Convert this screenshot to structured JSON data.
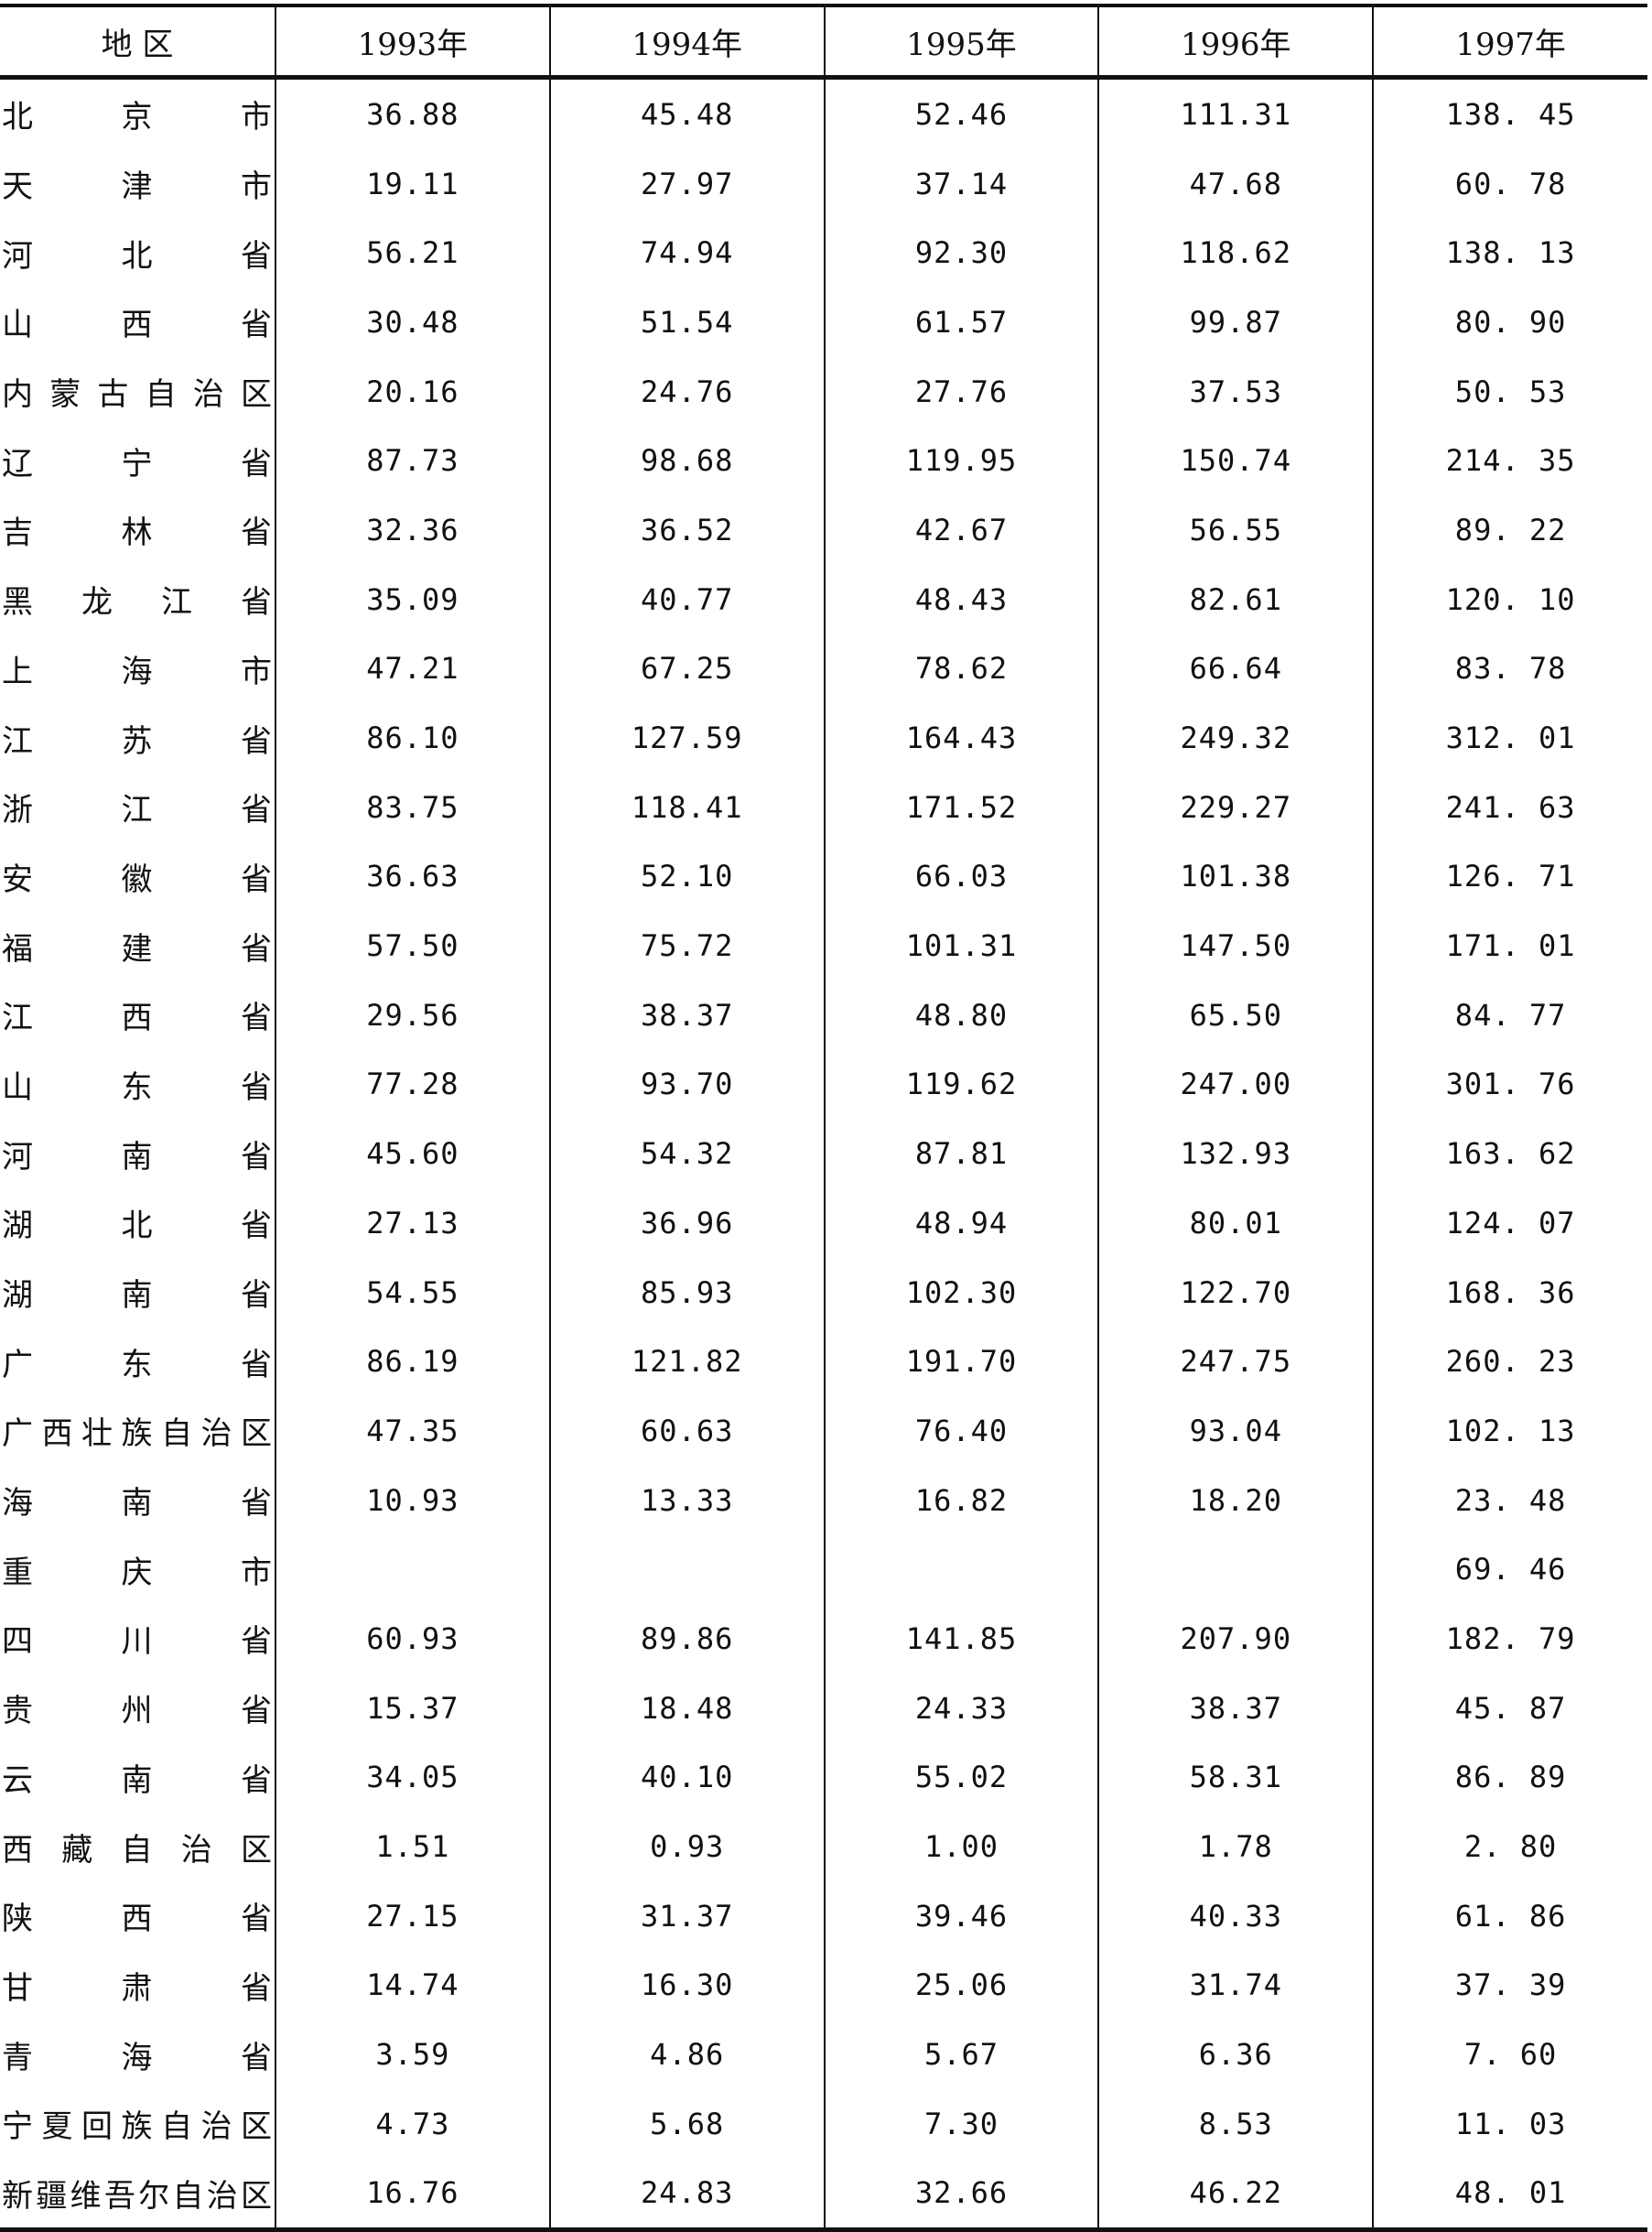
{
  "table": {
    "headers": [
      "地 区",
      "1993年",
      "1994年",
      "1995年",
      "1996年",
      "1997年"
    ],
    "rows": [
      [
        "北京市",
        "36.88",
        "45.48",
        "52.46",
        "111.31",
        "138. 45"
      ],
      [
        "天津市",
        "19.11",
        "27.97",
        "37.14",
        "47.68",
        "60. 78"
      ],
      [
        "河北省",
        "56.21",
        "74.94",
        "92.30",
        "118.62",
        "138. 13"
      ],
      [
        "山西省",
        "30.48",
        "51.54",
        "61.57",
        "99.87",
        "80. 90"
      ],
      [
        "内蒙古自治区",
        "20.16",
        "24.76",
        "27.76",
        "37.53",
        "50. 53"
      ],
      [
        "辽宁省",
        "87.73",
        "98.68",
        "119.95",
        "150.74",
        "214. 35"
      ],
      [
        "吉林省",
        "32.36",
        "36.52",
        "42.67",
        "56.55",
        "89. 22"
      ],
      [
        "黑龙江省",
        "35.09",
        "40.77",
        "48.43",
        "82.61",
        "120. 10"
      ],
      [
        "上海市",
        "47.21",
        "67.25",
        "78.62",
        "66.64",
        "83. 78"
      ],
      [
        "江苏省",
        "86.10",
        "127.59",
        "164.43",
        "249.32",
        "312. 01"
      ],
      [
        "浙江省",
        "83.75",
        "118.41",
        "171.52",
        "229.27",
        "241. 63"
      ],
      [
        "安徽省",
        "36.63",
        "52.10",
        "66.03",
        "101.38",
        "126. 71"
      ],
      [
        "福建省",
        "57.50",
        "75.72",
        "101.31",
        "147.50",
        "171. 01"
      ],
      [
        "江西省",
        "29.56",
        "38.37",
        "48.80",
        "65.50",
        "84. 77"
      ],
      [
        "山东省",
        "77.28",
        "93.70",
        "119.62",
        "247.00",
        "301. 76"
      ],
      [
        "河南省",
        "45.60",
        "54.32",
        "87.81",
        "132.93",
        "163. 62"
      ],
      [
        "湖北省",
        "27.13",
        "36.96",
        "48.94",
        "80.01",
        "124. 07"
      ],
      [
        "湖南省",
        "54.55",
        "85.93",
        "102.30",
        "122.70",
        "168. 36"
      ],
      [
        "广东省",
        "86.19",
        "121.82",
        "191.70",
        "247.75",
        "260. 23"
      ],
      [
        "广西壮族自治区",
        "47.35",
        "60.63",
        "76.40",
        "93.04",
        "102. 13"
      ],
      [
        "海南省",
        "10.93",
        "13.33",
        "16.82",
        "18.20",
        "23. 48"
      ],
      [
        "重庆市",
        "",
        "",
        "",
        "",
        "69. 46"
      ],
      [
        "四川省",
        "60.93",
        "89.86",
        "141.85",
        "207.90",
        "182. 79"
      ],
      [
        "贵州省",
        "15.37",
        "18.48",
        "24.33",
        "38.37",
        "45. 87"
      ],
      [
        "云南省",
        "34.05",
        "40.10",
        "55.02",
        "58.31",
        "86. 89"
      ],
      [
        "西藏自治区",
        "1.51",
        "0.93",
        "1.00",
        "1.78",
        "2. 80"
      ],
      [
        "陕西省",
        "27.15",
        "31.37",
        "39.46",
        "40.33",
        "61. 86"
      ],
      [
        "甘肃省",
        "14.74",
        "16.30",
        "25.06",
        "31.74",
        "37. 39"
      ],
      [
        "青海省",
        "3.59",
        "4.86",
        "5.67",
        "6.36",
        "7. 60"
      ],
      [
        "宁夏回族自治区",
        "4.73",
        "5.68",
        "7.30",
        "8.53",
        "11. 03"
      ],
      [
        "新疆维吾尔自治区",
        "16.76",
        "24.83",
        "32.66",
        "46.22",
        "48. 01"
      ]
    ]
  }
}
